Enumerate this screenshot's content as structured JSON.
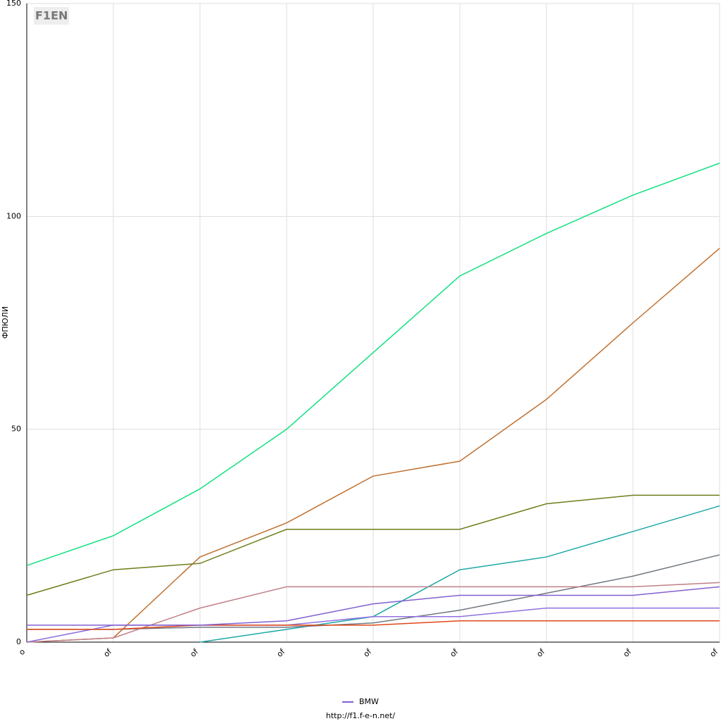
{
  "chart_data": {
    "type": "line",
    "logo": "F1EN",
    "ylabel": "ФПЮЛИ",
    "footer": "http://f1.f-e-n.net/",
    "categories": [
      "o",
      "of",
      "of",
      "of",
      "of",
      "of",
      "of",
      "of",
      "of"
    ],
    "ylim": [
      0,
      150
    ],
    "yticks": [
      0,
      50,
      100,
      150
    ],
    "grid": true,
    "series": [
      {
        "color": "#10e080",
        "values": [
          18,
          25,
          36,
          50,
          68,
          86,
          96,
          105,
          112.5
        ]
      },
      {
        "color": "#c07030",
        "values": [
          0,
          1,
          20,
          28,
          39,
          42.5,
          57,
          75,
          92.5
        ]
      },
      {
        "color": "#6b7f1a",
        "values": [
          11,
          17,
          18.5,
          26.5,
          26.5,
          26.5,
          32.5,
          34.5,
          34.5
        ]
      },
      {
        "color": "#20a8a8",
        "values": [
          null,
          null,
          0,
          3,
          6,
          17,
          20,
          26,
          32
        ]
      },
      {
        "color": "#707880",
        "values": [
          3,
          3,
          3.5,
          3.5,
          4.5,
          7.5,
          11.5,
          15.5,
          20.5
        ]
      },
      {
        "color": "#c08088",
        "values": [
          0,
          1,
          8,
          13,
          13,
          13,
          13,
          13,
          14
        ]
      },
      {
        "color": "#9070e0",
        "values": [
          0,
          4,
          4,
          4,
          6,
          6,
          8,
          8,
          8
        ]
      },
      {
        "color": "#e04818",
        "values": [
          3,
          3,
          4,
          4,
          4,
          5,
          5,
          5,
          5
        ]
      },
      {
        "name": "BMW",
        "color": "#8060d0",
        "values": [
          4,
          4,
          4,
          5,
          9,
          11,
          11,
          11,
          13
        ]
      }
    ]
  }
}
